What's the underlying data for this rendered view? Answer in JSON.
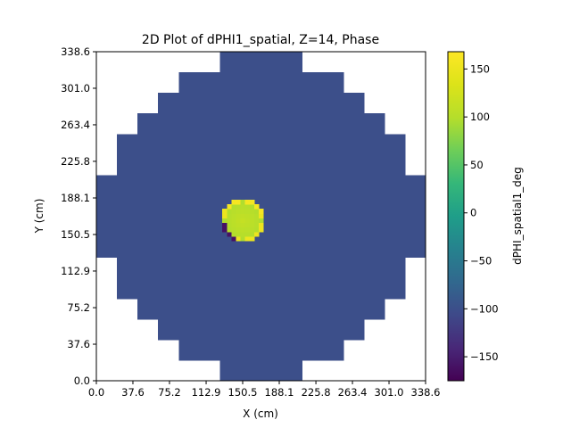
{
  "chart_data": {
    "type": "heatmap",
    "title": "2D Plot of dPHI1_spatial, Z=14, Phase",
    "xlabel": "X (cm)",
    "ylabel": "Y (cm)",
    "xlim": [
      0.0,
      338.6
    ],
    "ylim": [
      0.0,
      338.6
    ],
    "x_ticks": [
      "0.0",
      "37.6",
      "75.2",
      "112.9",
      "150.5",
      "188.1",
      "225.8",
      "263.4",
      "301.0",
      "338.6"
    ],
    "y_ticks": [
      "0.0",
      "37.6",
      "75.2",
      "112.9",
      "150.5",
      "188.1",
      "225.8",
      "263.4",
      "301.0",
      "338.6"
    ],
    "grid": false,
    "colormap": "viridis",
    "colorbar": {
      "label": "dPHI_spatial1_deg",
      "range": [
        -175,
        168
      ],
      "ticks": [
        "150",
        "100",
        "50",
        "0",
        "−50",
        "−100",
        "−150"
      ],
      "tick_values": [
        150,
        100,
        50,
        0,
        -50,
        -100,
        -150
      ]
    },
    "grid_cells": 16,
    "row_extents": [
      [
        6,
        9
      ],
      [
        4,
        11
      ],
      [
        3,
        12
      ],
      [
        2,
        13
      ],
      [
        1,
        14
      ],
      [
        1,
        14
      ],
      [
        0,
        15
      ],
      [
        0,
        15
      ],
      [
        0,
        15
      ],
      [
        0,
        15
      ],
      [
        1,
        14
      ],
      [
        1,
        14
      ],
      [
        2,
        13
      ],
      [
        3,
        12
      ],
      [
        4,
        11
      ],
      [
        6,
        9
      ]
    ],
    "background_value": -100,
    "hot_spot": {
      "x_center": 150.5,
      "y_center": 165.0,
      "radius": 21,
      "value_range": [
        90,
        120
      ]
    }
  }
}
